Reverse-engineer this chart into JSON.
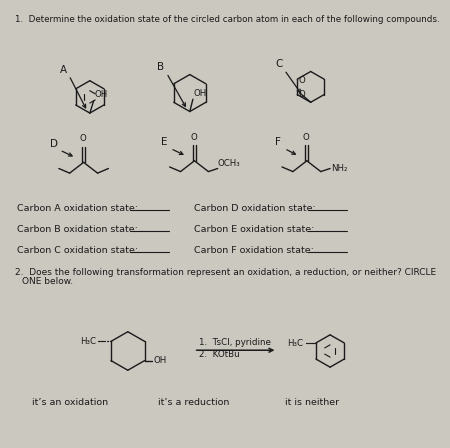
{
  "background_color": "#cbc8c0",
  "title": "1.  Determine the oxidation state of the circled carbon atom in each of the following compounds.",
  "q2": "2.  Does the following transformation represent an oxidation, a reduction, or neither? CIRCLE ONE below.",
  "labels_left": [
    "Carbon A oxidation state:",
    "Carbon B oxidation state:",
    "Carbon C oxidation state:"
  ],
  "labels_right": [
    "Carbon D oxidation state:",
    "Carbon E oxidation state:",
    "Carbon F oxidation state:"
  ],
  "bottom": [
    "it’s an oxidation",
    "it’s a reduction",
    "it is neither"
  ],
  "reagents": [
    "1.  TsCl, pyridine",
    "2.  KOtBu"
  ],
  "fontsize_main": 6.8,
  "fontsize_small": 6.2
}
